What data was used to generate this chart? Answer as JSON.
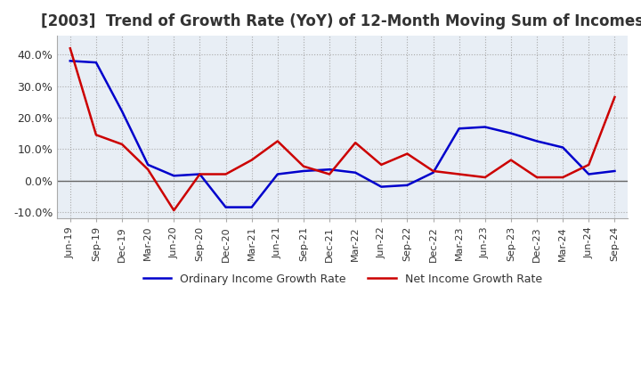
{
  "title": "[2003]  Trend of Growth Rate (YoY) of 12-Month Moving Sum of Incomes",
  "x_labels": [
    "Jun-19",
    "Sep-19",
    "Dec-19",
    "Mar-20",
    "Jun-20",
    "Sep-20",
    "Dec-20",
    "Mar-21",
    "Jun-21",
    "Sep-21",
    "Dec-21",
    "Mar-22",
    "Jun-22",
    "Sep-22",
    "Dec-22",
    "Mar-23",
    "Jun-23",
    "Sep-23",
    "Dec-23",
    "Mar-24",
    "Jun-24",
    "Sep-24"
  ],
  "ordinary_income": [
    38.0,
    37.5,
    22.0,
    5.0,
    1.5,
    2.0,
    -8.5,
    -8.5,
    2.0,
    3.0,
    3.5,
    2.5,
    -2.0,
    -1.5,
    2.5,
    16.5,
    17.0,
    15.0,
    12.5,
    10.5,
    2.0,
    3.0
  ],
  "net_income": [
    42.0,
    14.5,
    11.5,
    3.5,
    -9.5,
    2.0,
    2.0,
    6.5,
    12.5,
    4.5,
    2.0,
    12.0,
    5.0,
    8.5,
    3.0,
    2.0,
    1.0,
    6.5,
    1.0,
    1.0,
    5.0,
    26.5
  ],
  "ordinary_color": "#0000cc",
  "net_color": "#cc0000",
  "ylim": [
    -12,
    46
  ],
  "yticks": [
    -10.0,
    0.0,
    10.0,
    20.0,
    30.0,
    40.0
  ],
  "grid_color": "#aaaaaa",
  "plot_bg_color": "#e8eef5",
  "background_color": "#ffffff",
  "legend_labels": [
    "Ordinary Income Growth Rate",
    "Net Income Growth Rate"
  ],
  "title_fontsize": 12,
  "tick_fontsize": 8
}
